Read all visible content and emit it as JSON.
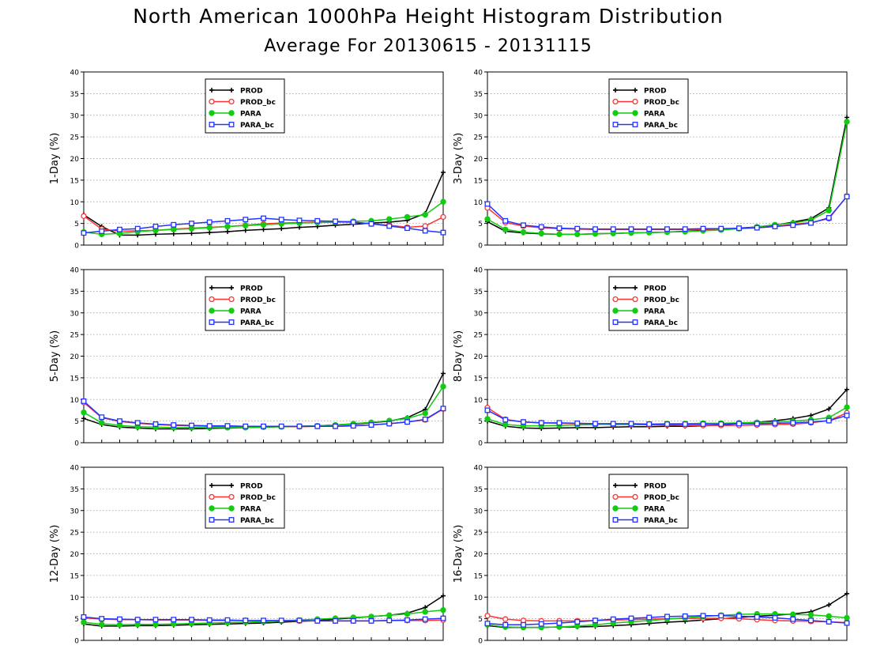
{
  "page": {
    "title": "North American 1000hPa Height Histogram Distribution",
    "subtitle": "Average For 20130615 - 20131115"
  },
  "colors": {
    "PROD": "#000000",
    "PROD_bc": "#ff3333",
    "PARA": "#11cc11",
    "PARA_bc": "#2233ff"
  },
  "chart_data": [
    {
      "type": "line",
      "ylabel": "1-Day (%)",
      "ylim": [
        0,
        40
      ],
      "yticks": [
        0,
        5,
        10,
        15,
        20,
        25,
        30,
        35,
        40
      ],
      "grid": true,
      "legend": "top-left",
      "x": [
        1,
        2,
        3,
        4,
        5,
        6,
        7,
        8,
        9,
        10,
        11,
        12,
        13,
        14,
        15,
        16,
        17,
        18,
        19,
        20,
        21
      ],
      "series": [
        {
          "name": "PROD",
          "marker": "plus",
          "values": [
            7,
            4.3,
            2.3,
            2.3,
            2.5,
            2.6,
            2.7,
            2.9,
            3.1,
            3.4,
            3.6,
            3.8,
            4.1,
            4.3,
            4.6,
            4.8,
            5.1,
            5.3,
            5.7,
            7.3,
            16.8
          ]
        },
        {
          "name": "PROD_bc",
          "marker": "open-circle",
          "values": [
            6.7,
            3.7,
            3.2,
            3.3,
            3.4,
            3.7,
            3.9,
            4.1,
            4.3,
            4.6,
            4.9,
            5.1,
            5.2,
            5.3,
            5.3,
            5.3,
            4.9,
            4.6,
            4.1,
            4.4,
            6.5
          ]
        },
        {
          "name": "PARA",
          "marker": "filled-circle",
          "values": [
            3,
            2.5,
            2.7,
            3.1,
            3.4,
            3.6,
            3.8,
            4.0,
            4.3,
            4.5,
            4.7,
            4.9,
            5.1,
            5.2,
            5.3,
            5.5,
            5.6,
            6.0,
            6.5,
            7.0,
            10
          ]
        },
        {
          "name": "PARA_bc",
          "marker": "open-square",
          "values": [
            2.8,
            3.2,
            3.6,
            3.8,
            4.3,
            4.7,
            5.0,
            5.3,
            5.6,
            5.9,
            6.2,
            5.9,
            5.7,
            5.6,
            5.5,
            5.3,
            4.9,
            4.4,
            3.9,
            3.3,
            2.9
          ]
        }
      ]
    },
    {
      "type": "line",
      "ylabel": "3-Day (%)",
      "ylim": [
        0,
        40
      ],
      "yticks": [
        0,
        5,
        10,
        15,
        20,
        25,
        30,
        35,
        40
      ],
      "grid": true,
      "legend": "top-left",
      "x": [
        1,
        2,
        3,
        4,
        5,
        6,
        7,
        8,
        9,
        10,
        11,
        12,
        13,
        14,
        15,
        16,
        17,
        18,
        19,
        20,
        21
      ],
      "series": [
        {
          "name": "PROD",
          "marker": "plus",
          "values": [
            5.4,
            3.2,
            2.8,
            2.6,
            2.5,
            2.5,
            2.6,
            2.7,
            2.8,
            2.9,
            3.0,
            3.2,
            3.4,
            3.6,
            3.9,
            4.2,
            4.6,
            5.3,
            6.1,
            8.6,
            29.5
          ]
        },
        {
          "name": "PROD_bc",
          "marker": "open-circle",
          "values": [
            8.6,
            5.2,
            4.4,
            4.0,
            3.8,
            3.7,
            3.6,
            3.6,
            3.6,
            3.6,
            3.6,
            3.6,
            3.6,
            3.7,
            3.8,
            4.0,
            4.3,
            4.8,
            5.2,
            6.1,
            11.3
          ]
        },
        {
          "name": "PARA",
          "marker": "filled-circle",
          "values": [
            6.0,
            3.6,
            3.0,
            2.7,
            2.5,
            2.5,
            2.6,
            2.7,
            2.8,
            2.9,
            3.0,
            3.1,
            3.3,
            3.5,
            3.8,
            4.2,
            4.7,
            5.1,
            5.8,
            8.0,
            28.5
          ]
        },
        {
          "name": "PARA_bc",
          "marker": "open-square",
          "values": [
            9.5,
            5.6,
            4.6,
            4.2,
            3.9,
            3.8,
            3.7,
            3.7,
            3.7,
            3.7,
            3.7,
            3.7,
            3.8,
            3.8,
            3.9,
            4.0,
            4.3,
            4.6,
            5.1,
            6.3,
            11.2
          ]
        }
      ]
    },
    {
      "type": "line",
      "ylabel": "5-Day (%)",
      "ylim": [
        0,
        40
      ],
      "yticks": [
        0,
        5,
        10,
        15,
        20,
        25,
        30,
        35,
        40
      ],
      "grid": true,
      "legend": "top-left",
      "x": [
        1,
        2,
        3,
        4,
        5,
        6,
        7,
        8,
        9,
        10,
        11,
        12,
        13,
        14,
        15,
        16,
        17,
        18,
        19,
        20,
        21
      ],
      "series": [
        {
          "name": "PROD",
          "marker": "plus",
          "values": [
            5.6,
            4.2,
            3.6,
            3.4,
            3.2,
            3.2,
            3.2,
            3.3,
            3.4,
            3.5,
            3.6,
            3.7,
            3.8,
            3.9,
            4.1,
            4.3,
            4.6,
            5.0,
            5.8,
            7.7,
            16.0
          ]
        },
        {
          "name": "PROD_bc",
          "marker": "open-circle",
          "values": [
            9.3,
            5.8,
            4.9,
            4.5,
            4.2,
            4.0,
            3.9,
            3.8,
            3.8,
            3.7,
            3.7,
            3.7,
            3.7,
            3.8,
            3.8,
            3.9,
            4.1,
            4.4,
            4.8,
            5.3,
            7.8
          ]
        },
        {
          "name": "PARA",
          "marker": "filled-circle",
          "values": [
            7.0,
            4.6,
            4.0,
            3.7,
            3.6,
            3.5,
            3.5,
            3.5,
            3.5,
            3.5,
            3.6,
            3.7,
            3.8,
            3.9,
            4.1,
            4.4,
            4.7,
            5.1,
            5.6,
            6.8,
            13.0
          ]
        },
        {
          "name": "PARA_bc",
          "marker": "open-square",
          "values": [
            9.6,
            5.9,
            5.0,
            4.6,
            4.3,
            4.1,
            4.0,
            3.9,
            3.9,
            3.8,
            3.8,
            3.8,
            3.8,
            3.8,
            3.8,
            3.9,
            4.1,
            4.4,
            4.8,
            5.4,
            7.9
          ]
        }
      ]
    },
    {
      "type": "line",
      "ylabel": "8-Day (%)",
      "ylim": [
        0,
        40
      ],
      "yticks": [
        0,
        5,
        10,
        15,
        20,
        25,
        30,
        35,
        40
      ],
      "grid": true,
      "legend": "top-left",
      "x": [
        1,
        2,
        3,
        4,
        5,
        6,
        7,
        8,
        9,
        10,
        11,
        12,
        13,
        14,
        15,
        16,
        17,
        18,
        19,
        20,
        21
      ],
      "series": [
        {
          "name": "PROD",
          "marker": "plus",
          "values": [
            5.0,
            3.8,
            3.4,
            3.3,
            3.4,
            3.5,
            3.5,
            3.6,
            3.7,
            3.7,
            3.8,
            3.8,
            3.9,
            4.1,
            4.4,
            4.7,
            5.1,
            5.6,
            6.3,
            7.8,
            12.3
          ]
        },
        {
          "name": "PROD_bc",
          "marker": "open-circle",
          "values": [
            8.1,
            5.4,
            4.8,
            4.6,
            4.5,
            4.4,
            4.3,
            4.2,
            4.2,
            4.1,
            4.1,
            4.0,
            4.0,
            4.0,
            4.0,
            4.1,
            4.2,
            4.3,
            4.6,
            5.1,
            6.9
          ]
        },
        {
          "name": "PARA",
          "marker": "filled-circle",
          "values": [
            5.5,
            4.2,
            3.9,
            3.9,
            4.0,
            4.1,
            4.2,
            4.3,
            4.3,
            4.3,
            4.4,
            4.4,
            4.5,
            4.5,
            4.6,
            4.7,
            4.8,
            5.0,
            5.3,
            5.8,
            8.2
          ]
        },
        {
          "name": "PARA_bc",
          "marker": "open-square",
          "values": [
            7.5,
            5.3,
            4.8,
            4.6,
            4.6,
            4.5,
            4.4,
            4.4,
            4.4,
            4.3,
            4.3,
            4.3,
            4.3,
            4.3,
            4.4,
            4.4,
            4.5,
            4.6,
            4.8,
            5.1,
            6.3
          ]
        }
      ]
    },
    {
      "type": "line",
      "ylabel": "12-Day (%)",
      "ylim": [
        0,
        40
      ],
      "yticks": [
        0,
        5,
        10,
        15,
        20,
        25,
        30,
        35,
        40
      ],
      "grid": true,
      "legend": "top-left",
      "x": [
        1,
        2,
        3,
        4,
        5,
        6,
        7,
        8,
        9,
        10,
        11,
        12,
        13,
        14,
        15,
        16,
        17,
        18,
        19,
        20,
        21
      ],
      "series": [
        {
          "name": "PROD",
          "marker": "plus",
          "values": [
            3.8,
            3.3,
            3.3,
            3.4,
            3.4,
            3.5,
            3.6,
            3.7,
            3.8,
            3.9,
            4.0,
            4.2,
            4.4,
            4.6,
            4.9,
            5.2,
            5.5,
            5.8,
            6.3,
            7.6,
            10.3
          ]
        },
        {
          "name": "PROD_bc",
          "marker": "open-circle",
          "values": [
            5.2,
            4.9,
            4.8,
            4.8,
            4.7,
            4.7,
            4.7,
            4.6,
            4.6,
            4.6,
            4.5,
            4.5,
            4.5,
            4.5,
            4.5,
            4.5,
            4.5,
            4.6,
            4.6,
            4.6,
            4.7
          ]
        },
        {
          "name": "PARA",
          "marker": "filled-circle",
          "values": [
            4.2,
            3.7,
            3.6,
            3.7,
            3.7,
            3.8,
            3.9,
            4.0,
            4.1,
            4.2,
            4.3,
            4.5,
            4.7,
            4.9,
            5.1,
            5.3,
            5.5,
            5.8,
            6.1,
            6.6,
            7.0
          ]
        },
        {
          "name": "PARA_bc",
          "marker": "open-square",
          "values": [
            5.4,
            5.0,
            4.9,
            4.8,
            4.8,
            4.8,
            4.8,
            4.7,
            4.7,
            4.6,
            4.6,
            4.6,
            4.6,
            4.5,
            4.5,
            4.5,
            4.5,
            4.6,
            4.7,
            4.9,
            5.1
          ]
        }
      ]
    },
    {
      "type": "line",
      "ylabel": "16-Day (%)",
      "ylim": [
        0,
        40
      ],
      "yticks": [
        0,
        5,
        10,
        15,
        20,
        25,
        30,
        35,
        40
      ],
      "grid": true,
      "legend": "top-left",
      "x": [
        1,
        2,
        3,
        4,
        5,
        6,
        7,
        8,
        9,
        10,
        11,
        12,
        13,
        14,
        15,
        16,
        17,
        18,
        19,
        20,
        21
      ],
      "series": [
        {
          "name": "PROD",
          "marker": "plus",
          "values": [
            3.4,
            3.0,
            3.0,
            3.0,
            3.1,
            3.1,
            3.2,
            3.4,
            3.6,
            3.9,
            4.2,
            4.4,
            4.7,
            5.0,
            5.3,
            5.6,
            5.8,
            6.1,
            6.6,
            8.2,
            10.8
          ]
        },
        {
          "name": "PROD_bc",
          "marker": "open-circle",
          "values": [
            5.7,
            4.9,
            4.6,
            4.5,
            4.5,
            4.5,
            4.6,
            4.7,
            4.8,
            4.9,
            5.0,
            5.1,
            5.1,
            5.1,
            5.0,
            4.8,
            4.6,
            4.5,
            4.4,
            4.3,
            4.1
          ]
        },
        {
          "name": "PARA",
          "marker": "filled-circle",
          "values": [
            3.6,
            3.1,
            3.0,
            3.0,
            3.1,
            3.3,
            3.6,
            4.0,
            4.3,
            4.6,
            4.9,
            5.2,
            5.5,
            5.8,
            6.0,
            6.1,
            6.1,
            6.0,
            5.9,
            5.6,
            5.2
          ]
        },
        {
          "name": "PARA_bc",
          "marker": "open-square",
          "values": [
            3.9,
            3.6,
            3.6,
            3.8,
            4.0,
            4.3,
            4.6,
            4.9,
            5.1,
            5.3,
            5.5,
            5.6,
            5.7,
            5.7,
            5.6,
            5.4,
            5.2,
            4.9,
            4.6,
            4.3,
            4.0
          ]
        }
      ]
    }
  ]
}
